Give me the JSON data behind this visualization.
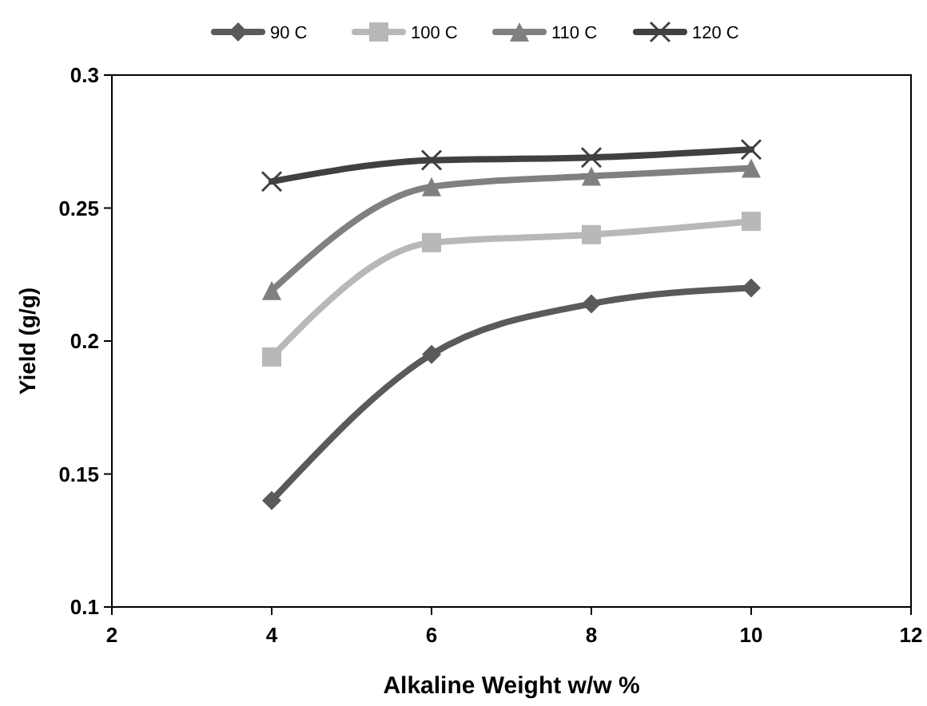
{
  "chart_data": {
    "type": "line",
    "xlabel": "Alkaline Weight w/w %",
    "ylabel": "Yield (g/g)",
    "x": [
      4,
      6,
      8,
      10
    ],
    "series": [
      {
        "name": "90 C",
        "color": "#5a5a5a",
        "marker": "diamond",
        "values": [
          0.14,
          0.195,
          0.214,
          0.22
        ]
      },
      {
        "name": "100 C",
        "color": "#b8b8b8",
        "marker": "square",
        "values": [
          0.194,
          0.237,
          0.24,
          0.245
        ]
      },
      {
        "name": "110 C",
        "color": "#808080",
        "marker": "triangle",
        "values": [
          0.219,
          0.258,
          0.262,
          0.265
        ]
      },
      {
        "name": "120 C",
        "color": "#404040",
        "marker": "cross",
        "values": [
          0.26,
          0.268,
          0.269,
          0.272
        ]
      }
    ],
    "xlim": [
      2,
      12
    ],
    "xticks": [
      2,
      4,
      6,
      8,
      10,
      12
    ],
    "ylim": [
      0.1,
      0.3
    ],
    "yticks": [
      0.1,
      0.15,
      0.2,
      0.25,
      0.3
    ],
    "grid": false,
    "legend": "top"
  }
}
